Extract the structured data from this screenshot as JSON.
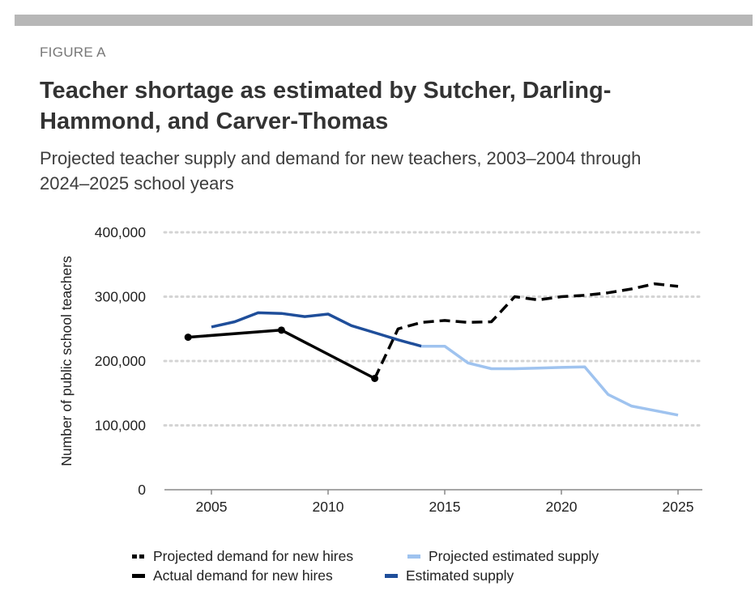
{
  "header": {
    "figure_label": "FIGURE A",
    "title": "Teacher shortage as estimated by Sutcher, Darling-Hammond, and Carver-Thomas",
    "subtitle": "Projected teacher supply and demand for new teachers, 2003–2004 through 2024–2025 school years"
  },
  "chart_data": {
    "type": "line",
    "title": "Teacher shortage as estimated by Sutcher, Darling-Hammond, and Carver-Thomas",
    "subtitle": "Projected teacher supply and demand for new teachers, 2003–2004 through 2024–2025 school years",
    "xlabel": "",
    "ylabel": "Number of public school teachers",
    "xlim": [
      2003,
      2026
    ],
    "ylim": [
      0,
      400000
    ],
    "x_ticks": [
      2005,
      2010,
      2015,
      2020,
      2025
    ],
    "x_tick_labels": [
      "2005",
      "2010",
      "2015",
      "2020",
      "2025"
    ],
    "y_ticks": [
      0,
      100000,
      200000,
      300000,
      400000
    ],
    "y_tick_labels": [
      "0",
      "100,000",
      "200,000",
      "300,000",
      "400,000"
    ],
    "grid": true,
    "legend_position": "bottom",
    "series": [
      {
        "name": "Projected demand for new hires",
        "color": "#000000",
        "style": "dashed",
        "markers": false,
        "points": [
          [
            2012,
            173000
          ],
          [
            2013,
            250000
          ],
          [
            2014,
            260000
          ],
          [
            2015,
            263000
          ],
          [
            2016,
            260000
          ],
          [
            2017,
            261000
          ],
          [
            2018,
            300000
          ],
          [
            2019,
            295000
          ],
          [
            2020,
            300000
          ],
          [
            2021,
            302000
          ],
          [
            2022,
            306000
          ],
          [
            2023,
            312000
          ],
          [
            2024,
            320000
          ],
          [
            2025,
            316000
          ]
        ]
      },
      {
        "name": "Actual demand for new hires",
        "color": "#000000",
        "style": "solid",
        "markers": true,
        "points": [
          [
            2004,
            237000
          ],
          [
            2008,
            248000
          ],
          [
            2012,
            173000
          ]
        ]
      },
      {
        "name": "Projected estimated supply",
        "color": "#9fc3ef",
        "style": "solid",
        "markers": false,
        "points": [
          [
            2014,
            223000
          ],
          [
            2015,
            223000
          ],
          [
            2016,
            197000
          ],
          [
            2017,
            188000
          ],
          [
            2018,
            188000
          ],
          [
            2019,
            189000
          ],
          [
            2020,
            190000
          ],
          [
            2021,
            191000
          ],
          [
            2022,
            148000
          ],
          [
            2023,
            130000
          ],
          [
            2024,
            123000
          ],
          [
            2025,
            116000
          ]
        ]
      },
      {
        "name": "Estimated supply",
        "color": "#1f4e9a",
        "style": "solid",
        "markers": false,
        "points": [
          [
            2005,
            253000
          ],
          [
            2006,
            261000
          ],
          [
            2007,
            275000
          ],
          [
            2008,
            274000
          ],
          [
            2009,
            269000
          ],
          [
            2010,
            273000
          ],
          [
            2011,
            255000
          ],
          [
            2012,
            244000
          ],
          [
            2013,
            233000
          ],
          [
            2014,
            223000
          ]
        ]
      }
    ]
  },
  "legend": {
    "items": [
      {
        "label": "Projected demand for new hires",
        "color": "#000000",
        "dashed": true
      },
      {
        "label": "Projected estimated supply",
        "color": "#9fc3ef",
        "dashed": false
      },
      {
        "label": "Actual demand for new hires",
        "color": "#000000",
        "dashed": false
      },
      {
        "label": "Estimated supply",
        "color": "#1f4e9a",
        "dashed": false
      }
    ]
  }
}
